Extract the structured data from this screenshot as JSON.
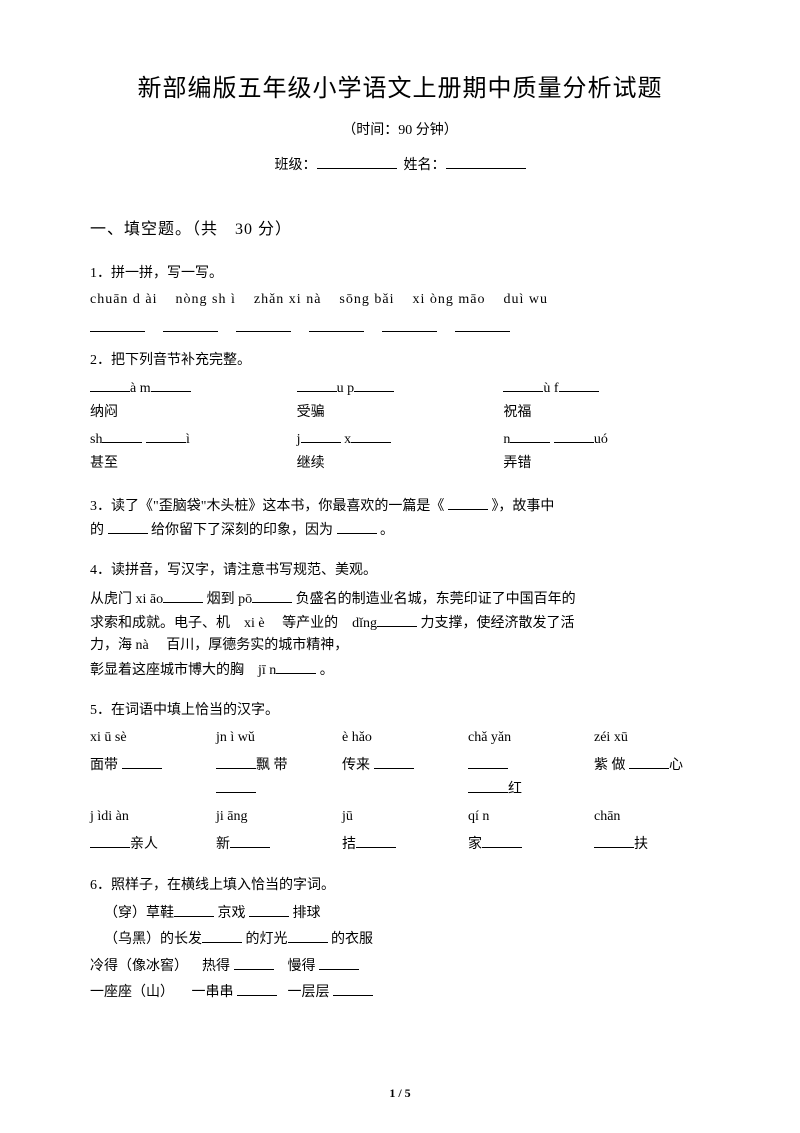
{
  "title": "新部编版五年级小学语文上册期中质量分析试题",
  "subtitle": "（时间：90 分钟）",
  "info_class": "班级：",
  "info_name": "姓名：",
  "section1": "一、填空题。（共　30 分）",
  "q1": {
    "title": "1．拼一拼，写一写。",
    "pinyin": [
      "chuān d ài",
      "nòng sh ì",
      "zhǎn xi nà",
      "sōng bǎi",
      "xi òng māo",
      "duì wu"
    ]
  },
  "q2": {
    "title": "2．把下列音节补充完整。",
    "r1c1_suffix": "à m",
    "r1c2_suffix": "u p",
    "r1c3_suffix": "ù f",
    "r1w1": "纳闷",
    "r1w2": "受骗",
    "r1w3": "祝福",
    "r2c1_pre": "sh",
    "r2c1_suf": "ì",
    "r2c2_pre": "j",
    "r2c2_mid": "x",
    "r2c3_pre": "n",
    "r2c3_suf": "uó",
    "r2w1": "甚至",
    "r2w2": "继续",
    "r2w3": "弄错"
  },
  "q3": {
    "text1": "3．读了《\"歪脑袋\"木头桩》这本书，你最喜欢的一篇是《",
    "text2": "》，故事中",
    "text3": "的",
    "text4": "给你留下了深刻的印象，因为",
    "text5": "。"
  },
  "q4": {
    "title": "4．读拼音，写汉字，请注意书写规范、美观。",
    "l1a": "从虎门 xi āo",
    "l1b": "烟到 pō",
    "l1c": "负盛名的制造业名城，东莞印证了中国百年的",
    "l2a": "求索和成就。电子、机　xi è",
    "l2b": "等产业的　dǐng",
    "l2c": "力支撑，使经济散发了活",
    "l3a": "力，海 nà",
    "l3b": "百川，厚德务实的城市精神，",
    "l4a": "彰显着这座城市博大的胸　jī n",
    "l4b": "。"
  },
  "q5": {
    "title": "5．在词语中填上恰当的汉字。",
    "row1": [
      "xi ū sè",
      "jn ì wǔ",
      "è hǎo",
      "chǎ yǎn",
      "zéi xū"
    ],
    "row2_pre": [
      "面带",
      "",
      "传来",
      "",
      "紫 做"
    ],
    "row2_suf": [
      "",
      "飘 带",
      "",
      "红",
      "心"
    ],
    "row3": [
      "j ìdi àn",
      "ji āng",
      "jū",
      "qí n",
      "chān"
    ],
    "row4_pre": [
      "",
      "新",
      "拮",
      "家",
      ""
    ],
    "row4_suf": [
      "亲人",
      "",
      "",
      "",
      "扶"
    ]
  },
  "q6": {
    "title": "6．照样子，在横线上填入恰当的字词。",
    "l1a": "（穿）草鞋",
    "l1b": "京戏",
    "l1c": "排球",
    "l2a": "（乌黑）的长发",
    "l2b": "的灯光",
    "l2c": "的衣服",
    "l3a": "冷得（像冰窖）",
    "l3b": "热得",
    "l3c": "慢得",
    "l4a": "一座座（山）",
    "l4b": "一串串",
    "l4c": "一层层"
  },
  "page": "1 / 5"
}
